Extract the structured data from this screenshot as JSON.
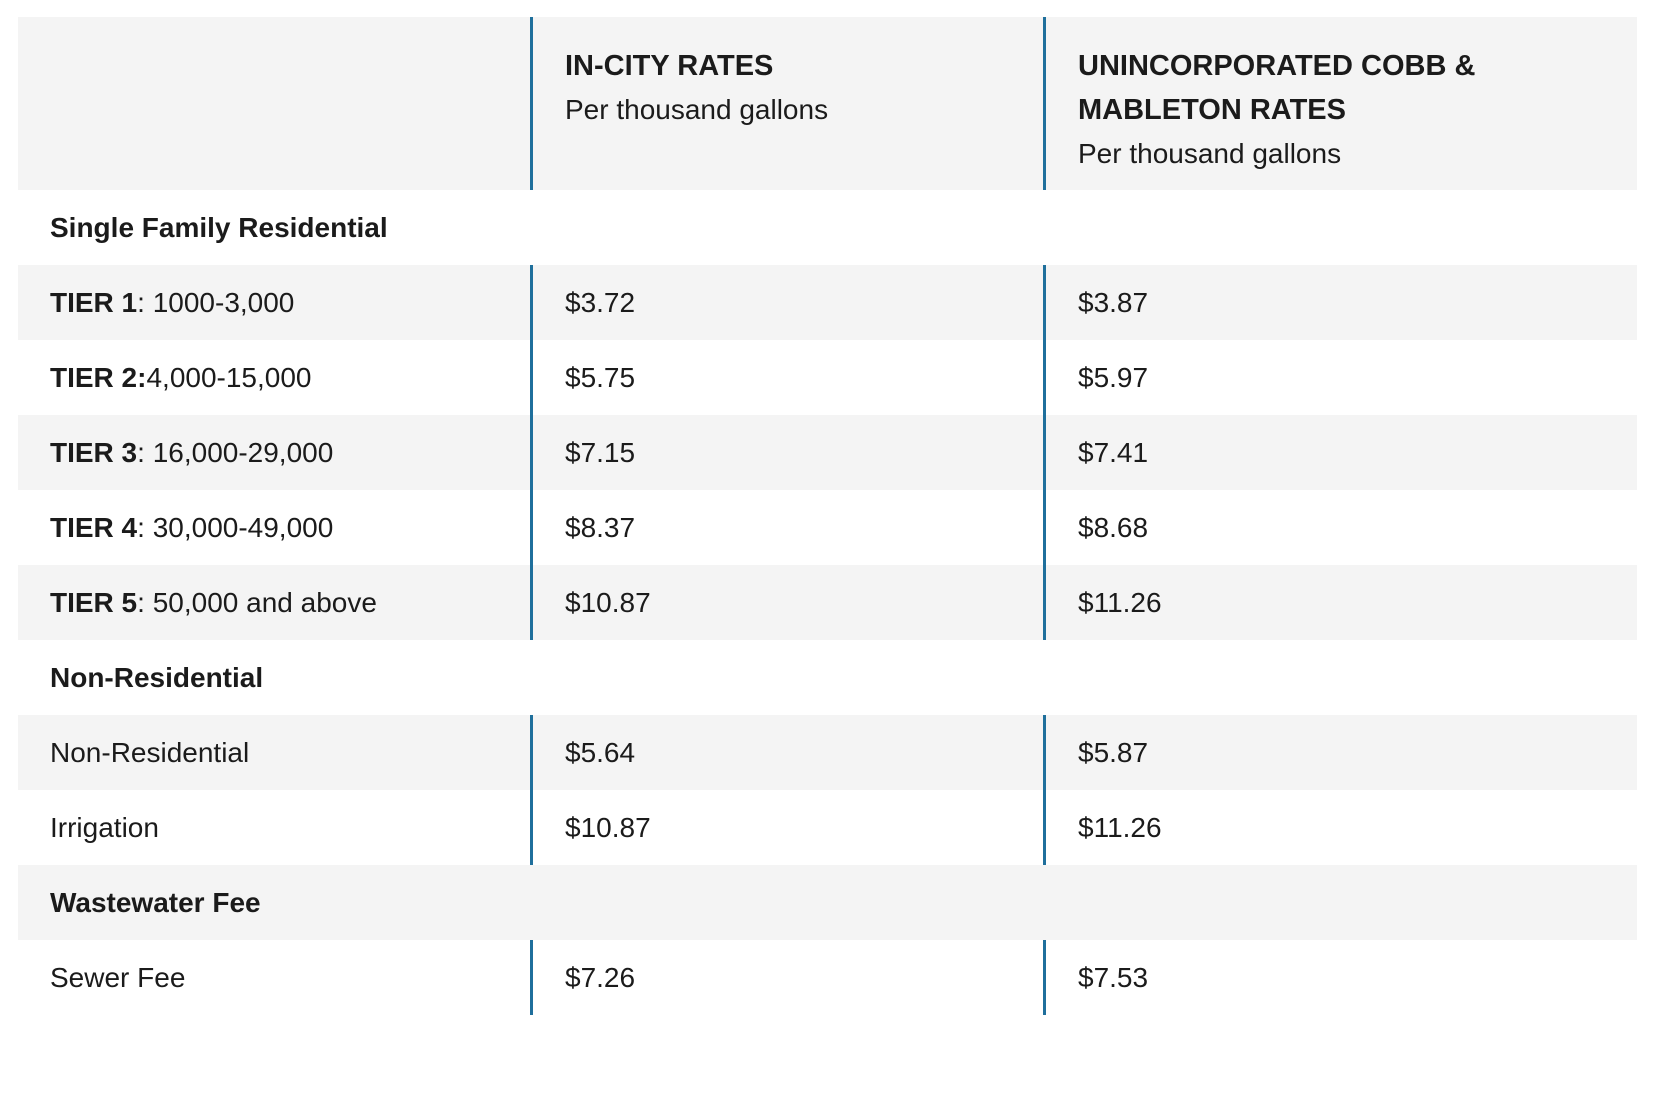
{
  "table": {
    "header": {
      "in_city": {
        "title": "IN-CITY RATES",
        "subtitle": "Per thousand gallons"
      },
      "cobb": {
        "title": "UNINCORPORATED COBB & MABLETON RATES",
        "subtitle": "Per thousand gallons"
      }
    },
    "sections": [
      {
        "title": "Single Family Residential",
        "rows": [
          {
            "bold": "TIER 1",
            "rest": ": 1000-3,000",
            "in_city": "$3.72",
            "cobb": "$3.87"
          },
          {
            "bold": "TIER 2:",
            "rest": " 4,000-15,000",
            "in_city": "$5.75",
            "cobb": "$5.97"
          },
          {
            "bold": "TIER 3",
            "rest": ": 16,000-29,000",
            "in_city": "$7.15",
            "cobb": "$7.41"
          },
          {
            "bold": "TIER 4",
            "rest": ": 30,000-49,000",
            "in_city": "$8.37",
            "cobb": "$8.68"
          },
          {
            "bold": "TIER 5",
            "rest": ": 50,000 and above",
            "in_city": "$10.87",
            "cobb": "$11.26"
          }
        ]
      },
      {
        "title": "Non-Residential",
        "rows": [
          {
            "bold": "",
            "rest": "Non-Residential",
            "in_city": "$5.64",
            "cobb": "$5.87"
          },
          {
            "bold": "",
            "rest": "Irrigation",
            "in_city": "$10.87",
            "cobb": "$11.26"
          }
        ]
      },
      {
        "title": "Wastewater Fee",
        "rows": [
          {
            "bold": "",
            "rest": "Sewer Fee",
            "in_city": "$7.26",
            "cobb": "$7.53"
          }
        ]
      }
    ],
    "colors": {
      "separator": "#1f6f9c",
      "row_alt": "#f4f4f4"
    }
  }
}
